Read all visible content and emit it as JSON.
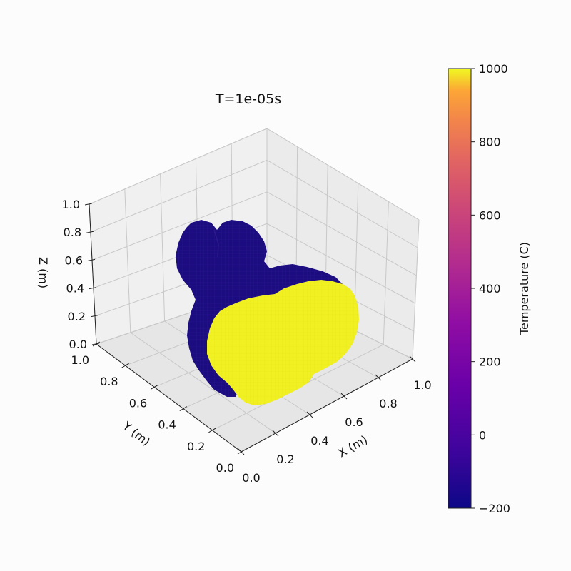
{
  "chart_data": {
    "type": "3d-voxel",
    "title": "T=1e-05s",
    "xlabel": "X (m)",
    "ylabel": "Y (m)",
    "zlabel": "Z (m)",
    "xlim": [
      0.0,
      1.0
    ],
    "ylim": [
      0.0,
      1.0
    ],
    "zlim": [
      0.0,
      1.0
    ],
    "xticks": [
      "0.0",
      "0.2",
      "0.4",
      "0.6",
      "0.8",
      "1.0"
    ],
    "yticks": [
      "0.0",
      "0.2",
      "0.4",
      "0.6",
      "0.8",
      "1.0"
    ],
    "zticks": [
      "0.0",
      "0.2",
      "0.4",
      "0.6",
      "0.8",
      "1.0"
    ],
    "grid": true,
    "colorbar": {
      "label": "Temperature (C)",
      "min": -200,
      "max": 1000,
      "ticks": [
        "1000",
        "800",
        "600",
        "400",
        "200",
        "0",
        "−200"
      ],
      "tick_values": [
        1000,
        800,
        600,
        400,
        200,
        0,
        -200
      ],
      "colormap": "plasma"
    },
    "regions": [
      {
        "part": "bunny body and ears",
        "temperature_C": -200,
        "color": "#1b0c7f"
      },
      {
        "part": "front heated face",
        "temperature_C": 1000,
        "color": "#f0f021"
      }
    ]
  }
}
